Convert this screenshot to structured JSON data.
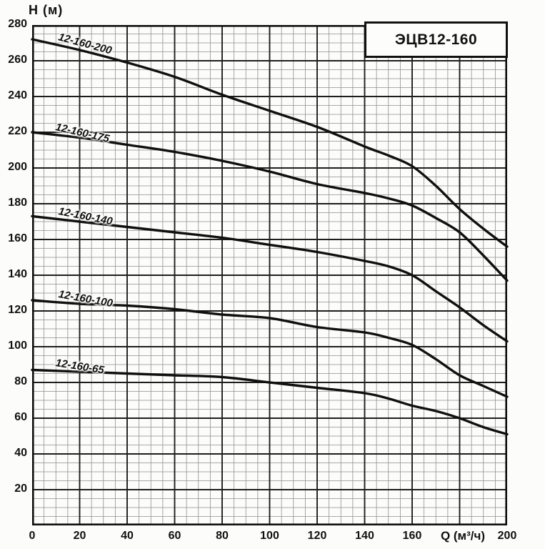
{
  "chart_data": {
    "type": "line",
    "title": "ЭЦВ12-160",
    "ylabel": "H (м)",
    "xlabel": "Q (м³/ч)",
    "x_axis": {
      "min": 0,
      "max": 200,
      "major_step": 20,
      "minor_step": 5,
      "tick_labels": [
        0,
        20,
        40,
        60,
        80,
        100,
        120,
        140,
        160,
        200
      ],
      "xlabel_at": 181
    },
    "y_axis": {
      "min": 0,
      "max": 280,
      "major_step": 20,
      "minor_step": 5,
      "tick_labels": [
        280,
        260,
        240,
        220,
        200,
        180,
        160,
        140,
        120,
        100,
        80,
        60,
        40,
        20
      ]
    },
    "grid": {
      "on": true,
      "minor_color": "#8f8f8f",
      "major_color": "#1e1e1e",
      "border_color": "#0f0f0f"
    },
    "curve_color": "#101010",
    "legend_position": "labels-on-curves",
    "series": [
      {
        "name": "12-160-200",
        "label_at_q": 11,
        "label_angle_deg": 15,
        "points": [
          [
            0,
            272
          ],
          [
            20,
            266
          ],
          [
            40,
            259
          ],
          [
            60,
            251
          ],
          [
            80,
            241
          ],
          [
            100,
            232
          ],
          [
            120,
            223
          ],
          [
            140,
            212
          ],
          [
            150,
            207
          ],
          [
            160,
            201
          ],
          [
            170,
            190
          ],
          [
            180,
            177
          ],
          [
            190,
            166
          ],
          [
            200,
            156
          ]
        ]
      },
      {
        "name": "12-160-175",
        "label_at_q": 10,
        "label_angle_deg": 13,
        "points": [
          [
            0,
            220
          ],
          [
            20,
            217
          ],
          [
            40,
            213
          ],
          [
            60,
            209
          ],
          [
            80,
            204
          ],
          [
            100,
            198
          ],
          [
            120,
            191
          ],
          [
            140,
            186
          ],
          [
            150,
            183
          ],
          [
            160,
            179
          ],
          [
            170,
            172
          ],
          [
            180,
            164
          ],
          [
            190,
            151
          ],
          [
            200,
            137
          ]
        ]
      },
      {
        "name": "12-160-140",
        "label_at_q": 11,
        "label_angle_deg": 11,
        "points": [
          [
            0,
            173
          ],
          [
            20,
            170
          ],
          [
            40,
            167
          ],
          [
            60,
            164
          ],
          [
            80,
            161
          ],
          [
            100,
            157
          ],
          [
            120,
            153
          ],
          [
            140,
            148
          ],
          [
            150,
            145
          ],
          [
            160,
            140
          ],
          [
            170,
            131
          ],
          [
            180,
            122
          ],
          [
            190,
            112
          ],
          [
            200,
            103
          ]
        ]
      },
      {
        "name": "12-160-100",
        "label_at_q": 11,
        "label_angle_deg": 10,
        "points": [
          [
            0,
            126
          ],
          [
            20,
            124
          ],
          [
            40,
            123
          ],
          [
            60,
            121
          ],
          [
            80,
            118
          ],
          [
            100,
            116
          ],
          [
            120,
            111
          ],
          [
            140,
            108
          ],
          [
            150,
            105
          ],
          [
            160,
            101
          ],
          [
            170,
            93
          ],
          [
            180,
            84
          ],
          [
            190,
            78
          ],
          [
            200,
            72
          ]
        ]
      },
      {
        "name": "12-160-65",
        "label_at_q": 10,
        "label_angle_deg": 9,
        "points": [
          [
            0,
            87
          ],
          [
            20,
            86
          ],
          [
            40,
            85
          ],
          [
            60,
            84
          ],
          [
            80,
            83
          ],
          [
            100,
            80
          ],
          [
            120,
            77
          ],
          [
            140,
            74
          ],
          [
            150,
            71
          ],
          [
            160,
            67
          ],
          [
            170,
            64
          ],
          [
            180,
            60
          ],
          [
            190,
            55
          ],
          [
            200,
            51
          ]
        ]
      }
    ]
  }
}
